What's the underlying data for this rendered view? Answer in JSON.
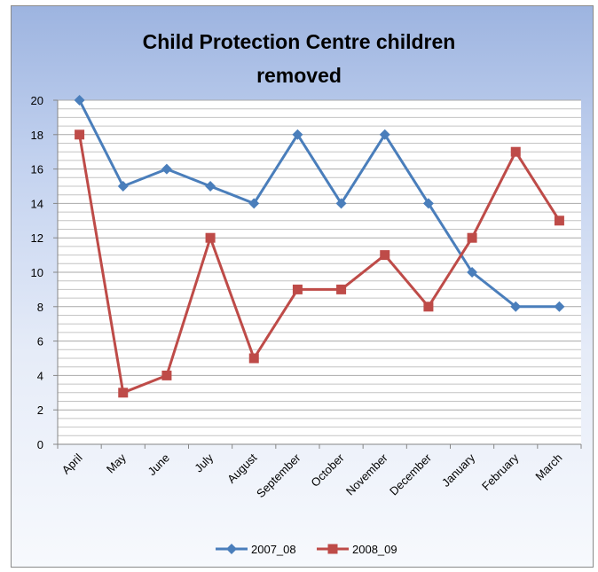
{
  "chart_data": {
    "type": "line",
    "title_lines": [
      "Child Protection Centre children",
      "removed"
    ],
    "xlabel": "",
    "ylabel": "",
    "categories": [
      "April",
      "May",
      "June",
      "July",
      "August",
      "September",
      "October",
      "November",
      "December",
      "January",
      "February",
      "March"
    ],
    "series": [
      {
        "name": "2007_08",
        "color": "#4a7ebb",
        "marker": "diamond",
        "values": [
          20,
          15,
          16,
          15,
          14,
          18,
          14,
          18,
          14,
          10,
          8,
          8
        ]
      },
      {
        "name": "2008_09",
        "color": "#be4b48",
        "marker": "square",
        "values": [
          18,
          3,
          4,
          12,
          5,
          9,
          9,
          11,
          8,
          12,
          17,
          13
        ]
      }
    ],
    "ylim": [
      0,
      20
    ],
    "yticks": [
      0,
      2,
      4,
      6,
      8,
      10,
      12,
      14,
      16,
      18,
      20
    ],
    "grid": true,
    "legend_position": "bottom"
  }
}
